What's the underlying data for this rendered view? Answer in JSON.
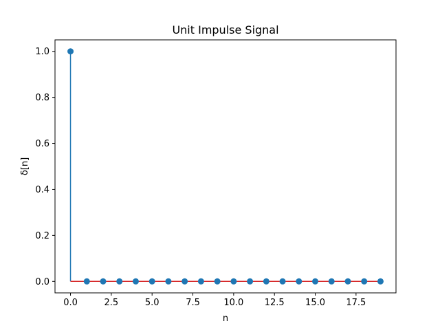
{
  "chart_data": {
    "type": "stem",
    "title": "Unit Impulse Signal",
    "xlabel": "n",
    "ylabel": "δ[n]",
    "x": [
      0,
      1,
      2,
      3,
      4,
      5,
      6,
      7,
      8,
      9,
      10,
      11,
      12,
      13,
      14,
      15,
      16,
      17,
      18,
      19
    ],
    "y": [
      1,
      0,
      0,
      0,
      0,
      0,
      0,
      0,
      0,
      0,
      0,
      0,
      0,
      0,
      0,
      0,
      0,
      0,
      0,
      0
    ],
    "xlim": [
      -0.95,
      19.95
    ],
    "ylim": [
      -0.05,
      1.05
    ],
    "xticks": [
      0,
      2.5,
      5,
      7.5,
      10,
      12.5,
      15,
      17.5
    ],
    "xtick_labels": [
      "0.0",
      "2.5",
      "5.0",
      "7.5",
      "10.0",
      "12.5",
      "15.0",
      "17.5"
    ],
    "yticks": [
      0,
      0.2,
      0.4,
      0.6,
      0.8,
      1
    ],
    "ytick_labels": [
      "0.0",
      "0.2",
      "0.4",
      "0.6",
      "0.8",
      "1.0"
    ],
    "grid": false,
    "colors": {
      "stem": "#1f77b4",
      "marker": "#1f77b4",
      "baseline": "#d62728"
    }
  }
}
